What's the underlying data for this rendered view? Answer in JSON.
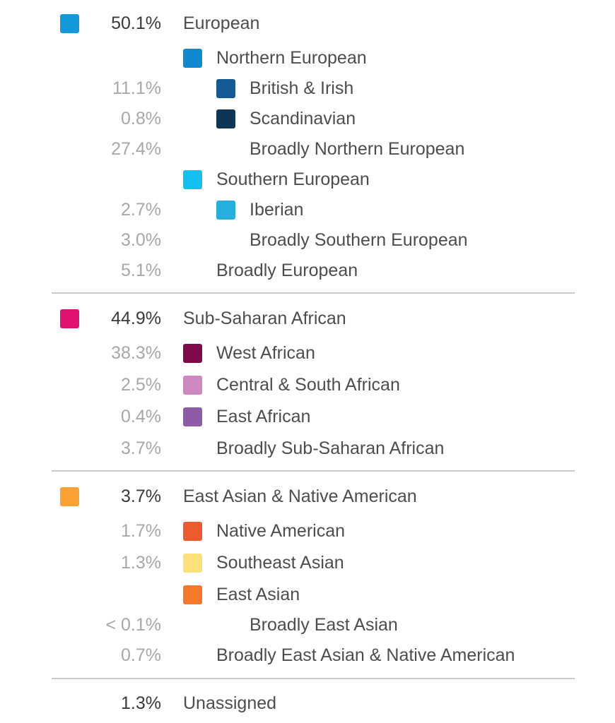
{
  "ancestry": {
    "groups": [
      {
        "rows": [
          {
            "level": 0,
            "percent": "50.1%",
            "label": "European",
            "color": "#1298db"
          },
          {
            "level": 1,
            "percent": "",
            "label": "Northern European",
            "color": "#1288d3"
          },
          {
            "level": 2,
            "percent": "11.1%",
            "label": "British & Irish",
            "color": "#155a94"
          },
          {
            "level": 2,
            "percent": "0.8%",
            "label": "Scandinavian",
            "color": "#0e3556"
          },
          {
            "level": 2,
            "percent": "27.4%",
            "label": "Broadly Northern European",
            "color": ""
          },
          {
            "level": 1,
            "percent": "",
            "label": "Southern European",
            "color": "#12c1f0"
          },
          {
            "level": 2,
            "percent": "2.7%",
            "label": "Iberian",
            "color": "#24afdf"
          },
          {
            "level": 2,
            "percent": "3.0%",
            "label": "Broadly Southern European",
            "color": ""
          },
          {
            "level": 1,
            "percent": "5.1%",
            "label": "Broadly European",
            "color": ""
          }
        ]
      },
      {
        "rows": [
          {
            "level": 0,
            "percent": "44.9%",
            "label": "Sub-Saharan African",
            "color": "#e1116f"
          },
          {
            "level": 1,
            "percent": "38.3%",
            "label": "West African",
            "color": "#7e0a48"
          },
          {
            "level": 1,
            "percent": "2.5%",
            "label": "Central & South African",
            "color": "#cd88c2"
          },
          {
            "level": 1,
            "percent": "0.4%",
            "label": "East African",
            "color": "#8e5ba9"
          },
          {
            "level": 1,
            "percent": "3.7%",
            "label": "Broadly Sub-Saharan African",
            "color": ""
          }
        ]
      },
      {
        "rows": [
          {
            "level": 0,
            "percent": "3.7%",
            "label": "East Asian & Native American",
            "color": "#f9a132"
          },
          {
            "level": 1,
            "percent": "1.7%",
            "label": "Native American",
            "color": "#ee5a30"
          },
          {
            "level": 1,
            "percent": "1.3%",
            "label": "Southeast Asian",
            "color": "#fde07a"
          },
          {
            "level": 1,
            "percent": "",
            "label": "East Asian",
            "color": "#f4792a"
          },
          {
            "level": 2,
            "percent": "< 0.1%",
            "label": "Broadly East Asian",
            "color": ""
          },
          {
            "level": 1,
            "percent": "0.7%",
            "label": "Broadly East Asian & Native American",
            "color": ""
          }
        ]
      },
      {
        "rows": [
          {
            "level": 0,
            "percent": "1.3%",
            "label": "Unassigned",
            "color": ""
          }
        ]
      }
    ]
  }
}
